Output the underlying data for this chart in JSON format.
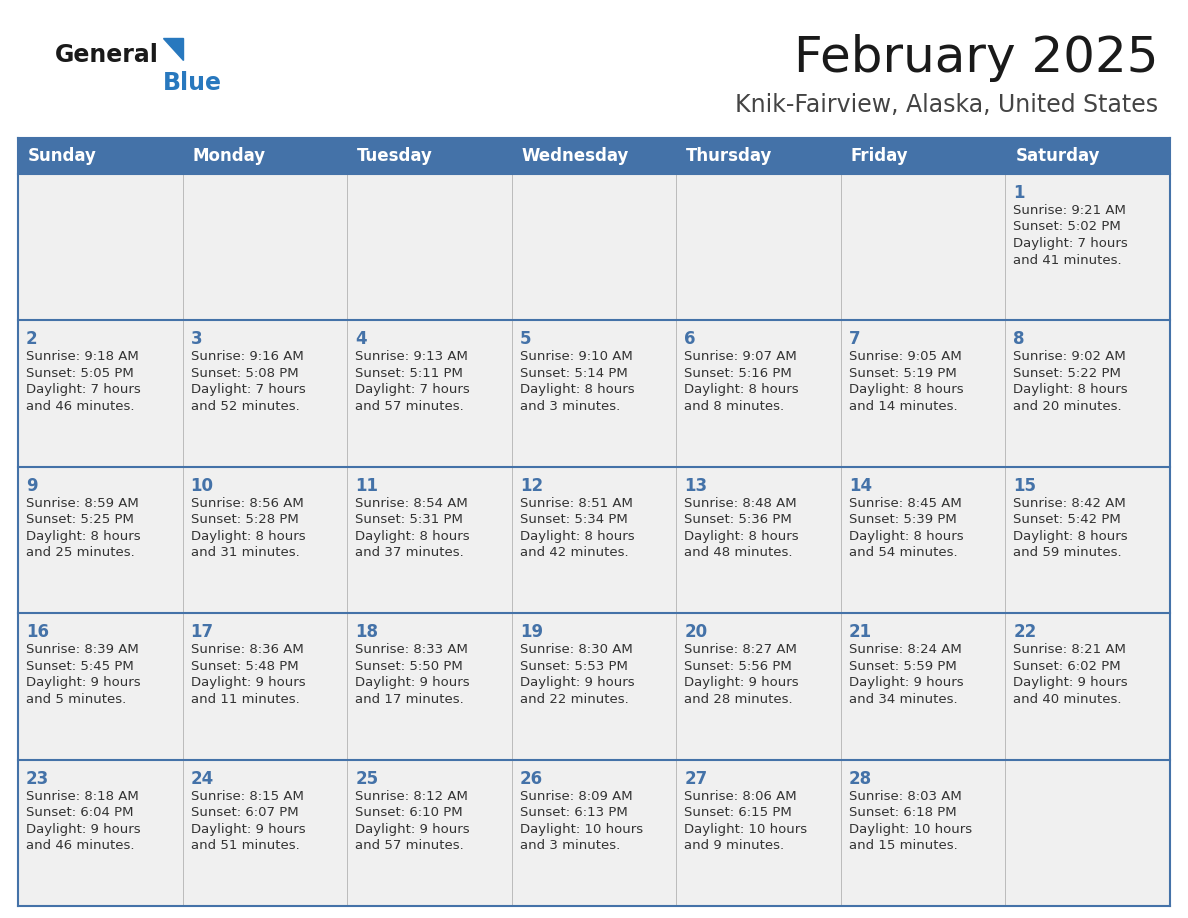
{
  "title": "February 2025",
  "subtitle": "Knik-Fairview, Alaska, United States",
  "header_color": "#4472a8",
  "header_text_color": "#ffffff",
  "cell_bg": "#f0f0f0",
  "border_color": "#4472a8",
  "day_num_color": "#4472a8",
  "text_color": "#333333",
  "day_headers": [
    "Sunday",
    "Monday",
    "Tuesday",
    "Wednesday",
    "Thursday",
    "Friday",
    "Saturday"
  ],
  "logo_general_color": "#1a1a1a",
  "logo_blue_color": "#2878be",
  "logo_triangle_color": "#2878be",
  "days": [
    {
      "day": 1,
      "col": 6,
      "row": 0,
      "sunrise": "9:21 AM",
      "sunset": "5:02 PM",
      "daylight": "7 hours and 41 minutes."
    },
    {
      "day": 2,
      "col": 0,
      "row": 1,
      "sunrise": "9:18 AM",
      "sunset": "5:05 PM",
      "daylight": "7 hours and 46 minutes."
    },
    {
      "day": 3,
      "col": 1,
      "row": 1,
      "sunrise": "9:16 AM",
      "sunset": "5:08 PM",
      "daylight": "7 hours and 52 minutes."
    },
    {
      "day": 4,
      "col": 2,
      "row": 1,
      "sunrise": "9:13 AM",
      "sunset": "5:11 PM",
      "daylight": "7 hours and 57 minutes."
    },
    {
      "day": 5,
      "col": 3,
      "row": 1,
      "sunrise": "9:10 AM",
      "sunset": "5:14 PM",
      "daylight": "8 hours and 3 minutes."
    },
    {
      "day": 6,
      "col": 4,
      "row": 1,
      "sunrise": "9:07 AM",
      "sunset": "5:16 PM",
      "daylight": "8 hours and 8 minutes."
    },
    {
      "day": 7,
      "col": 5,
      "row": 1,
      "sunrise": "9:05 AM",
      "sunset": "5:19 PM",
      "daylight": "8 hours and 14 minutes."
    },
    {
      "day": 8,
      "col": 6,
      "row": 1,
      "sunrise": "9:02 AM",
      "sunset": "5:22 PM",
      "daylight": "8 hours and 20 minutes."
    },
    {
      "day": 9,
      "col": 0,
      "row": 2,
      "sunrise": "8:59 AM",
      "sunset": "5:25 PM",
      "daylight": "8 hours and 25 minutes."
    },
    {
      "day": 10,
      "col": 1,
      "row": 2,
      "sunrise": "8:56 AM",
      "sunset": "5:28 PM",
      "daylight": "8 hours and 31 minutes."
    },
    {
      "day": 11,
      "col": 2,
      "row": 2,
      "sunrise": "8:54 AM",
      "sunset": "5:31 PM",
      "daylight": "8 hours and 37 minutes."
    },
    {
      "day": 12,
      "col": 3,
      "row": 2,
      "sunrise": "8:51 AM",
      "sunset": "5:34 PM",
      "daylight": "8 hours and 42 minutes."
    },
    {
      "day": 13,
      "col": 4,
      "row": 2,
      "sunrise": "8:48 AM",
      "sunset": "5:36 PM",
      "daylight": "8 hours and 48 minutes."
    },
    {
      "day": 14,
      "col": 5,
      "row": 2,
      "sunrise": "8:45 AM",
      "sunset": "5:39 PM",
      "daylight": "8 hours and 54 minutes."
    },
    {
      "day": 15,
      "col": 6,
      "row": 2,
      "sunrise": "8:42 AM",
      "sunset": "5:42 PM",
      "daylight": "8 hours and 59 minutes."
    },
    {
      "day": 16,
      "col": 0,
      "row": 3,
      "sunrise": "8:39 AM",
      "sunset": "5:45 PM",
      "daylight": "9 hours and 5 minutes."
    },
    {
      "day": 17,
      "col": 1,
      "row": 3,
      "sunrise": "8:36 AM",
      "sunset": "5:48 PM",
      "daylight": "9 hours and 11 minutes."
    },
    {
      "day": 18,
      "col": 2,
      "row": 3,
      "sunrise": "8:33 AM",
      "sunset": "5:50 PM",
      "daylight": "9 hours and 17 minutes."
    },
    {
      "day": 19,
      "col": 3,
      "row": 3,
      "sunrise": "8:30 AM",
      "sunset": "5:53 PM",
      "daylight": "9 hours and 22 minutes."
    },
    {
      "day": 20,
      "col": 4,
      "row": 3,
      "sunrise": "8:27 AM",
      "sunset": "5:56 PM",
      "daylight": "9 hours and 28 minutes."
    },
    {
      "day": 21,
      "col": 5,
      "row": 3,
      "sunrise": "8:24 AM",
      "sunset": "5:59 PM",
      "daylight": "9 hours and 34 minutes."
    },
    {
      "day": 22,
      "col": 6,
      "row": 3,
      "sunrise": "8:21 AM",
      "sunset": "6:02 PM",
      "daylight": "9 hours and 40 minutes."
    },
    {
      "day": 23,
      "col": 0,
      "row": 4,
      "sunrise": "8:18 AM",
      "sunset": "6:04 PM",
      "daylight": "9 hours and 46 minutes."
    },
    {
      "day": 24,
      "col": 1,
      "row": 4,
      "sunrise": "8:15 AM",
      "sunset": "6:07 PM",
      "daylight": "9 hours and 51 minutes."
    },
    {
      "day": 25,
      "col": 2,
      "row": 4,
      "sunrise": "8:12 AM",
      "sunset": "6:10 PM",
      "daylight": "9 hours and 57 minutes."
    },
    {
      "day": 26,
      "col": 3,
      "row": 4,
      "sunrise": "8:09 AM",
      "sunset": "6:13 PM",
      "daylight": "10 hours and 3 minutes."
    },
    {
      "day": 27,
      "col": 4,
      "row": 4,
      "sunrise": "8:06 AM",
      "sunset": "6:15 PM",
      "daylight": "10 hours and 9 minutes."
    },
    {
      "day": 28,
      "col": 5,
      "row": 4,
      "sunrise": "8:03 AM",
      "sunset": "6:18 PM",
      "daylight": "10 hours and 15 minutes."
    }
  ]
}
